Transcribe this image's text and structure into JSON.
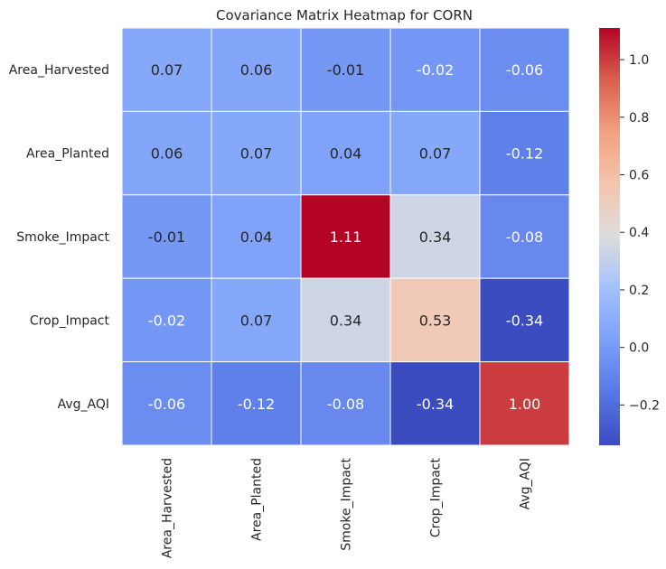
{
  "chart_data": {
    "type": "heatmap",
    "title": "Covariance Matrix Heatmap for CORN",
    "row_labels": [
      "Area_Harvested",
      "Area_Planted",
      "Smoke_Impact",
      "Crop_Impact",
      "Avg_AQI"
    ],
    "col_labels": [
      "Area_Harvested",
      "Area_Planted",
      "Smoke_Impact",
      "Crop_Impact",
      "Avg_AQI"
    ],
    "values": [
      [
        0.07,
        0.06,
        -0.01,
        -0.02,
        -0.06
      ],
      [
        0.06,
        0.07,
        0.04,
        0.07,
        -0.12
      ],
      [
        -0.01,
        0.04,
        1.11,
        0.34,
        -0.08
      ],
      [
        -0.02,
        0.07,
        0.34,
        0.53,
        -0.34
      ],
      [
        -0.06,
        -0.12,
        -0.08,
        -0.34,
        1.0
      ]
    ],
    "cell_text": [
      [
        "0.07",
        "0.06",
        "-0.01",
        "-0.02",
        "-0.06"
      ],
      [
        "0.06",
        "0.07",
        "0.04",
        "0.07",
        "-0.12"
      ],
      [
        "-0.01",
        "0.04",
        "1.11",
        "0.34",
        "-0.08"
      ],
      [
        "-0.02",
        "0.07",
        "0.34",
        "0.53",
        "-0.34"
      ],
      [
        "-0.06",
        "-0.12",
        "-0.08",
        "-0.34",
        "1.00"
      ]
    ],
    "colormap": "coolwarm",
    "vmin": -0.34,
    "vmax": 1.11,
    "colorbar_ticks": [
      -0.2,
      0.0,
      0.2,
      0.4,
      0.6,
      0.8,
      1.0
    ],
    "colorbar_tick_labels": [
      "−0.2",
      "0.0",
      "0.2",
      "0.4",
      "0.6",
      "0.8",
      "1.0"
    ],
    "colorbar_position": "right",
    "grid_lines": "white"
  }
}
